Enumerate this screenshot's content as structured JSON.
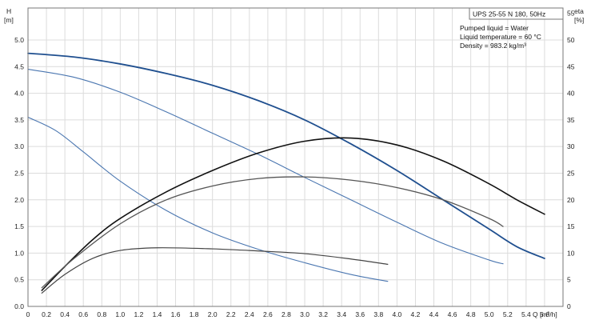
{
  "chart_data": {
    "type": "line",
    "title": "UPS 25-55 N 180, 50Hz",
    "annotations": [
      "Pumped liquid = Water",
      "Liquid temperature = 60 °C",
      "Density = 983.2 kg/m³"
    ],
    "xlabel": "Q [m³/h]",
    "ylabel_left": [
      "H",
      "[m]"
    ],
    "ylabel_right": [
      "eta",
      "[%]"
    ],
    "xlim": [
      0,
      5.8
    ],
    "ylim_left": [
      0,
      5.6
    ],
    "ylim_right": [
      0,
      56
    ],
    "x_ticks": [
      "0",
      "0.2",
      "0.4",
      "0.6",
      "0.8",
      "1.0",
      "1.2",
      "1.4",
      "1.6",
      "1.8",
      "2.0",
      "2.2",
      "2.4",
      "2.6",
      "2.8",
      "3.0",
      "3.2",
      "3.4",
      "3.6",
      "3.8",
      "4.0",
      "4.2",
      "4.4",
      "4.6",
      "4.8",
      "5.0",
      "5.2",
      "5.4",
      "5.6"
    ],
    "y_ticks_left": [
      "0.0",
      "0.5",
      "1.0",
      "1.5",
      "2.0",
      "2.5",
      "3.0",
      "3.5",
      "4.0",
      "4.5",
      "5.0"
    ],
    "y_ticks_right": [
      "0",
      "5",
      "10",
      "15",
      "20",
      "25",
      "30",
      "35",
      "40",
      "45",
      "50",
      "55"
    ],
    "grid": true,
    "series": [
      {
        "axis": "left",
        "color": "#1f4f8f",
        "width": 1.8,
        "points": [
          [
            0,
            4.75
          ],
          [
            0.5,
            4.68
          ],
          [
            1.0,
            4.55
          ],
          [
            1.5,
            4.37
          ],
          [
            2.0,
            4.15
          ],
          [
            2.5,
            3.86
          ],
          [
            3.0,
            3.5
          ],
          [
            3.5,
            3.05
          ],
          [
            4.0,
            2.55
          ],
          [
            4.5,
            2.0
          ],
          [
            5.0,
            1.45
          ],
          [
            5.3,
            1.12
          ],
          [
            5.6,
            0.9
          ]
        ]
      },
      {
        "axis": "left",
        "color": "#4a76b0",
        "width": 1.1,
        "points": [
          [
            0,
            4.45
          ],
          [
            0.5,
            4.3
          ],
          [
            1.0,
            4.02
          ],
          [
            1.5,
            3.65
          ],
          [
            2.0,
            3.25
          ],
          [
            2.5,
            2.85
          ],
          [
            3.0,
            2.42
          ],
          [
            3.5,
            2.0
          ],
          [
            4.0,
            1.58
          ],
          [
            4.5,
            1.18
          ],
          [
            5.0,
            0.87
          ],
          [
            5.15,
            0.8
          ]
        ]
      },
      {
        "axis": "left",
        "color": "#4a76b0",
        "width": 1.1,
        "points": [
          [
            0,
            3.55
          ],
          [
            0.3,
            3.3
          ],
          [
            0.6,
            2.9
          ],
          [
            1.0,
            2.35
          ],
          [
            1.5,
            1.8
          ],
          [
            2.0,
            1.38
          ],
          [
            2.5,
            1.07
          ],
          [
            3.0,
            0.82
          ],
          [
            3.5,
            0.6
          ],
          [
            3.9,
            0.47
          ]
        ]
      },
      {
        "axis": "right",
        "color": "#111111",
        "width": 1.6,
        "points": [
          [
            0.15,
            3
          ],
          [
            0.4,
            7.5
          ],
          [
            0.7,
            12.5
          ],
          [
            1.0,
            16.5
          ],
          [
            1.5,
            21.5
          ],
          [
            2.0,
            25.5
          ],
          [
            2.5,
            28.8
          ],
          [
            3.0,
            31
          ],
          [
            3.5,
            31.6
          ],
          [
            4.0,
            30.3
          ],
          [
            4.5,
            27.3
          ],
          [
            5.0,
            23
          ],
          [
            5.3,
            20
          ],
          [
            5.6,
            17.3
          ]
        ]
      },
      {
        "axis": "right",
        "color": "#555555",
        "width": 1.3,
        "points": [
          [
            0.15,
            3.5
          ],
          [
            0.5,
            9
          ],
          [
            1.0,
            15.5
          ],
          [
            1.5,
            20
          ],
          [
            2.0,
            22.6
          ],
          [
            2.5,
            24
          ],
          [
            3.0,
            24.3
          ],
          [
            3.5,
            23.7
          ],
          [
            4.0,
            22.3
          ],
          [
            4.5,
            20
          ],
          [
            5.0,
            16.5
          ],
          [
            5.15,
            15
          ]
        ]
      },
      {
        "axis": "right",
        "color": "#444444",
        "width": 1.2,
        "points": [
          [
            0.15,
            2.5
          ],
          [
            0.4,
            6
          ],
          [
            0.7,
            9
          ],
          [
            1.0,
            10.5
          ],
          [
            1.4,
            11
          ],
          [
            2.0,
            10.8
          ],
          [
            2.5,
            10.4
          ],
          [
            3.0,
            9.9
          ],
          [
            3.5,
            8.9
          ],
          [
            3.9,
            7.9
          ]
        ]
      }
    ]
  }
}
